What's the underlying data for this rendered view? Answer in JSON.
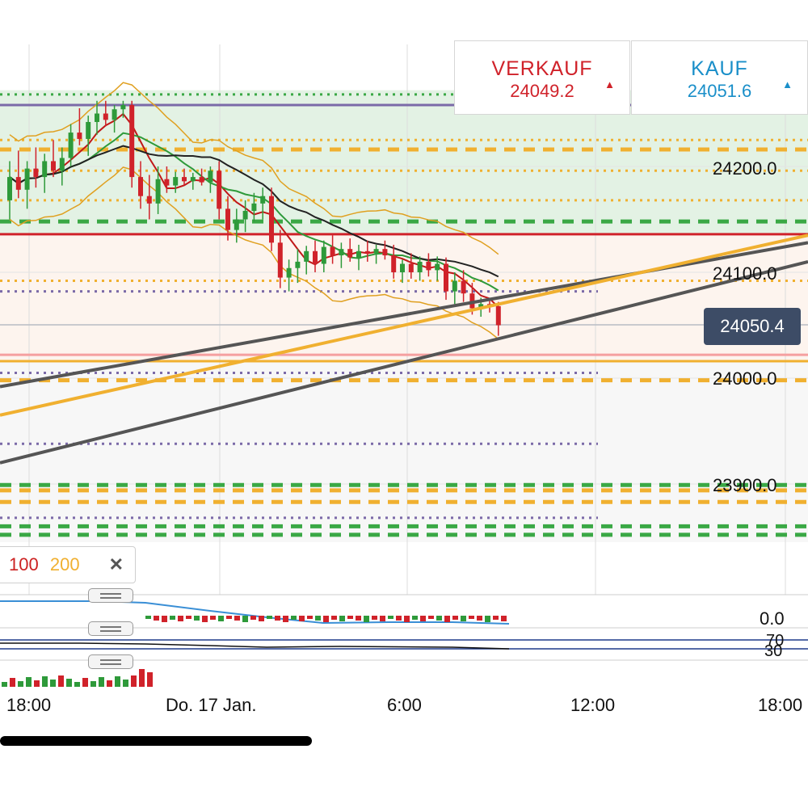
{
  "quote": {
    "sell_label": "VERKAUF",
    "sell_value": "24049.2",
    "buy_label": "KAUF",
    "buy_value": "24051.6",
    "sell_color": "#d0222a",
    "buy_color": "#1a8fc9",
    "arrow": "▲"
  },
  "current_price": "24050.4",
  "ma_legend": {
    "ma100": "100",
    "ma200": "200",
    "close": "✕"
  },
  "indicator_labels": {
    "zero": "0.0",
    "rsi_high": "70",
    "rsi_low": "30"
  },
  "chart_data": {
    "type": "candlestick",
    "price_axis": {
      "ticks": [
        24200.0,
        24100.0,
        24000.0,
        23900.0
      ],
      "labels": [
        "24200.0",
        "24100.0",
        "24000.0",
        "23900.0"
      ],
      "range": [
        23830,
        24270
      ]
    },
    "time_axis": {
      "labels": [
        "18:00",
        "Do. 17 Jan.",
        "6:00",
        "12:00",
        "18:00"
      ]
    },
    "last_price": 24050.4,
    "candles": [
      [
        24168,
        24205,
        24150,
        24190
      ],
      [
        24190,
        24215,
        24170,
        24178
      ],
      [
        24178,
        24205,
        24160,
        24198
      ],
      [
        24198,
        24218,
        24180,
        24190
      ],
      [
        24190,
        24212,
        24175,
        24205
      ],
      [
        24205,
        24225,
        24190,
        24196
      ],
      [
        24196,
        24218,
        24182,
        24208
      ],
      [
        24208,
        24240,
        24200,
        24232
      ],
      [
        24232,
        24255,
        24220,
        24226
      ],
      [
        24226,
        24248,
        24210,
        24242
      ],
      [
        24242,
        24262,
        24230,
        24250
      ],
      [
        24250,
        24262,
        24238,
        24244
      ],
      [
        24244,
        24258,
        24232,
        24254
      ],
      [
        24254,
        24262,
        24246,
        24258
      ],
      [
        24258,
        24262,
        24180,
        24190
      ],
      [
        24190,
        24205,
        24160,
        24172
      ],
      [
        24172,
        24192,
        24150,
        24165
      ],
      [
        24165,
        24200,
        24155,
        24188
      ],
      [
        24188,
        24200,
        24175,
        24182
      ],
      [
        24182,
        24195,
        24175,
        24190
      ],
      [
        24190,
        24198,
        24182,
        24186
      ],
      [
        24186,
        24194,
        24178,
        24190
      ],
      [
        24190,
        24198,
        24182,
        24185
      ],
      [
        24185,
        24200,
        24175,
        24196
      ],
      [
        24196,
        24205,
        24150,
        24160
      ],
      [
        24160,
        24172,
        24130,
        24140
      ],
      [
        24140,
        24160,
        24128,
        24150
      ],
      [
        24150,
        24168,
        24138,
        24158
      ],
      [
        24158,
        24175,
        24148,
        24165
      ],
      [
        24165,
        24180,
        24150,
        24172
      ],
      [
        24172,
        24180,
        24120,
        24128
      ],
      [
        24128,
        24140,
        24085,
        24095
      ],
      [
        24095,
        24112,
        24082,
        24104
      ],
      [
        24104,
        24122,
        24090,
        24110
      ],
      [
        24110,
        24125,
        24098,
        24120
      ],
      [
        24120,
        24130,
        24100,
        24108
      ],
      [
        24108,
        24130,
        24100,
        24124
      ],
      [
        24124,
        24135,
        24108,
        24116
      ],
      [
        24116,
        24128,
        24104,
        24122
      ],
      [
        24122,
        24132,
        24110,
        24114
      ],
      [
        24114,
        24126,
        24102,
        24120
      ],
      [
        24120,
        24130,
        24110,
        24118
      ],
      [
        24118,
        24126,
        24108,
        24122
      ],
      [
        24122,
        24130,
        24112,
        24116
      ],
      [
        24116,
        24126,
        24094,
        24100
      ],
      [
        24100,
        24112,
        24090,
        24108
      ],
      [
        24108,
        24118,
        24094,
        24100
      ],
      [
        24100,
        24115,
        24092,
        24110
      ],
      [
        24110,
        24118,
        24096,
        24102
      ],
      [
        24102,
        24115,
        24092,
        24108
      ],
      [
        24108,
        24114,
        24074,
        24082
      ],
      [
        24082,
        24100,
        24070,
        24092
      ],
      [
        24092,
        24102,
        24072,
        24080
      ],
      [
        24080,
        24090,
        24060,
        24066
      ],
      [
        24066,
        24076,
        24058,
        24070
      ],
      [
        24070,
        24076,
        24062,
        24068
      ],
      [
        24068,
        24072,
        24040,
        24050
      ]
    ],
    "levels": [
      {
        "price": 24268,
        "style": "dotted",
        "color": "#3aa845"
      },
      {
        "price": 24258,
        "style": "solid",
        "color": "#7b6aa8"
      },
      {
        "price": 24225,
        "style": "dotted",
        "color": "#f0b030"
      },
      {
        "price": 24216,
        "style": "dashed",
        "color": "#f0b030"
      },
      {
        "price": 24196,
        "style": "dotted",
        "color": "#f0b030"
      },
      {
        "price": 24168,
        "style": "dotted",
        "color": "#f0b030"
      },
      {
        "price": 24148,
        "style": "dashed",
        "color": "#3aa845"
      },
      {
        "price": 24136,
        "style": "solid",
        "color": "#d0222a"
      },
      {
        "price": 24092,
        "style": "dotted",
        "color": "#f0b030"
      },
      {
        "price": 24082,
        "style": "dotted",
        "color": "#7b6aa8"
      },
      {
        "price": 24022,
        "style": "solid",
        "color": "#f5a0a0"
      },
      {
        "price": 24016,
        "style": "solid",
        "color": "#f0b030"
      },
      {
        "price": 24005,
        "style": "dotted",
        "color": "#7b6aa8"
      },
      {
        "price": 23998,
        "style": "dashed",
        "color": "#f0b030"
      },
      {
        "price": 23938,
        "style": "dotted",
        "color": "#7b6aa8"
      },
      {
        "price": 23899,
        "style": "dashed",
        "color": "#3aa845"
      },
      {
        "price": 23894,
        "style": "dashed",
        "color": "#f0b030"
      },
      {
        "price": 23883,
        "style": "dashed",
        "color": "#f0b030"
      },
      {
        "price": 23868,
        "style": "dotted",
        "color": "#7b6aa8"
      },
      {
        "price": 23860,
        "style": "dashed",
        "color": "#3aa845"
      },
      {
        "price": 23852,
        "style": "dashed",
        "color": "#3aa845"
      }
    ]
  }
}
